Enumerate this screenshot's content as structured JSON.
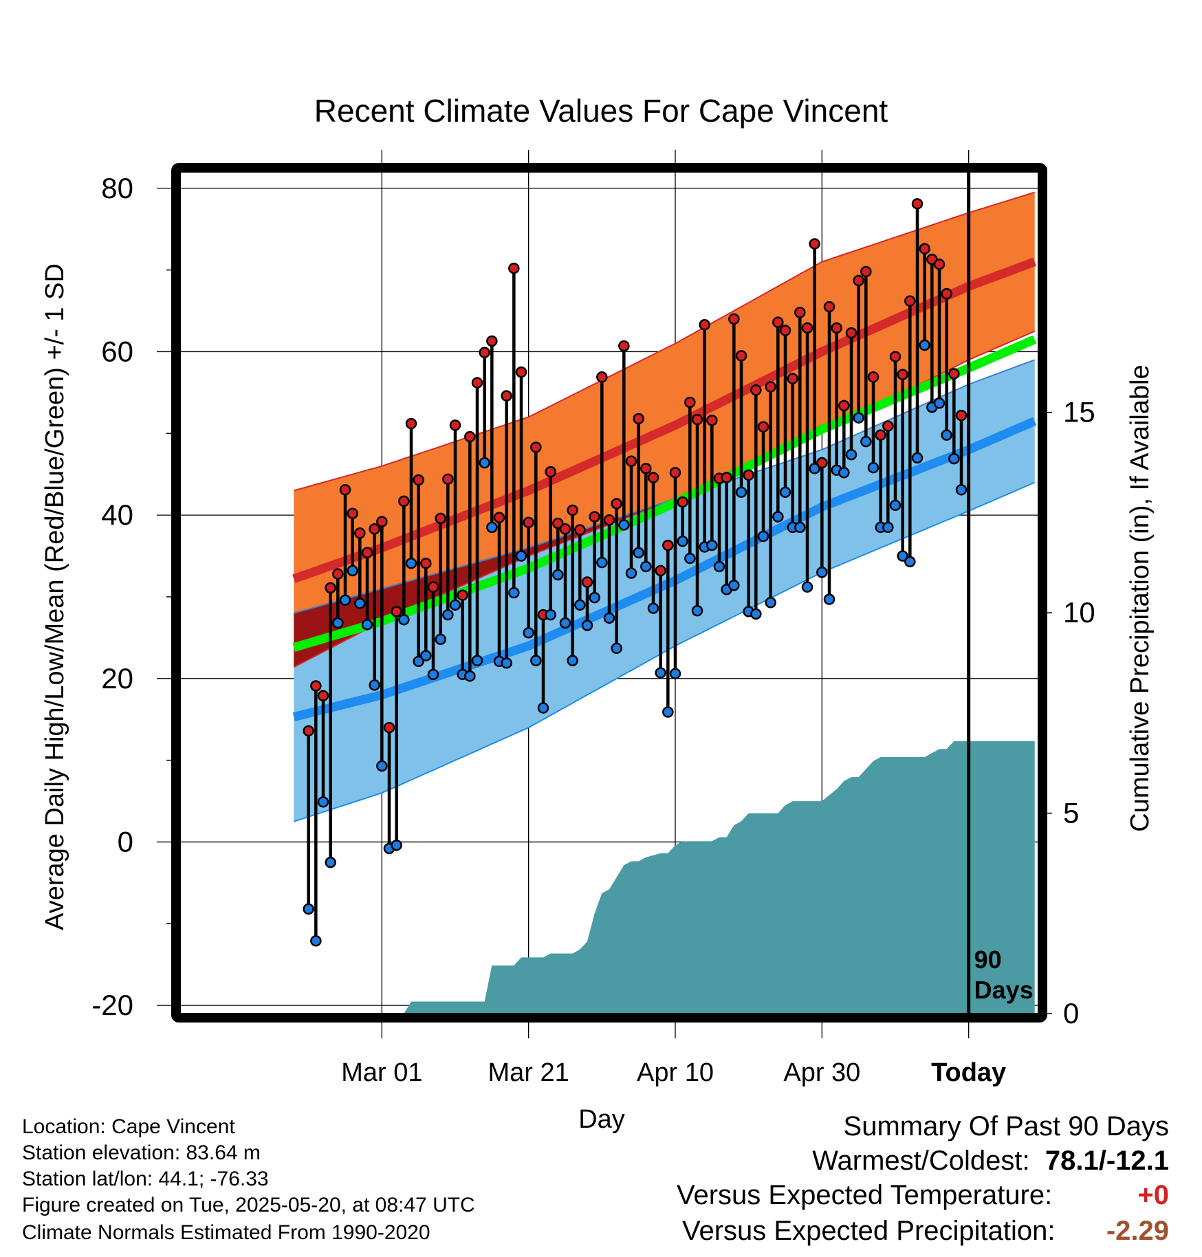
{
  "chart_data": {
    "type": "line",
    "title": "Recent Climate Values For Cape Vincent",
    "xlabel": "Day",
    "ylabel_left": "Average Daily High/Low/Mean (Red/Blue/Green) +/- 1 SD",
    "ylabel_right": "Cumulative Precipitation (in), If Available",
    "ylim": [
      -21,
      82
    ],
    "precip_lim": [
      0,
      21
    ],
    "x_range_days": [
      -107.5,
      9.5
    ],
    "x_ticks": [
      {
        "day": -80,
        "label": "Mar 01"
      },
      {
        "day": -60,
        "label": "Mar 21"
      },
      {
        "day": -40,
        "label": "Apr 10"
      },
      {
        "day": -20,
        "label": "Apr 30"
      },
      {
        "day": 0,
        "label": "Today"
      }
    ],
    "y_ticks": [
      -20,
      0,
      20,
      40,
      60,
      80
    ],
    "y_tick_labels": [
      "-20",
      "0",
      "20",
      "40",
      "60",
      "80"
    ],
    "precip_ticks": [
      0,
      5,
      10,
      15
    ],
    "precip_tick_labels": [
      "0",
      "5",
      "10",
      "15"
    ],
    "today_marker_label": [
      "90",
      "Days"
    ],
    "normals": {
      "days": [
        -92,
        -80,
        -60,
        -40,
        -20,
        0,
        9
      ],
      "high_mean": [
        32.2,
        36,
        43,
        51,
        60,
        68,
        71
      ],
      "high_sd_upper": [
        43,
        46,
        52,
        61,
        71,
        77,
        79.5
      ],
      "high_sd_lower": [
        21.4,
        27,
        35,
        42,
        50,
        59,
        62.5
      ],
      "low_mean": [
        15.3,
        18,
        24,
        32,
        41,
        48,
        51.5
      ],
      "low_sd_upper": [
        28,
        31,
        36,
        42,
        48,
        56,
        59
      ],
      "low_sd_lower": [
        2.5,
        6,
        14,
        24,
        33,
        40.5,
        44
      ],
      "avg_mean": [
        23.8,
        27,
        33.5,
        41.5,
        50.5,
        58,
        61.5
      ]
    },
    "series": [
      {
        "name": "High",
        "days": [
          -90,
          -89,
          -88,
          -87,
          -86,
          -85,
          -84,
          -83,
          -82,
          -81,
          -80,
          -79,
          -78,
          -77,
          -76,
          -75,
          -74,
          -73,
          -72,
          -71,
          -70,
          -69,
          -68,
          -67,
          -66,
          -65,
          -64,
          -63,
          -62,
          -61,
          -60,
          -59,
          -58,
          -57,
          -56,
          -55,
          -54,
          -53,
          -52,
          -51,
          -50,
          -49,
          -48,
          -47,
          -46,
          -45,
          -44,
          -43,
          -42,
          -41,
          -40,
          -39,
          -38,
          -37,
          -36,
          -35,
          -34,
          -33,
          -32,
          -31,
          -30,
          -29,
          -28,
          -27,
          -26,
          -25,
          -24,
          -23,
          -22,
          -21,
          -20,
          -19,
          -18,
          -17,
          -16,
          -15,
          -14,
          -13,
          -12,
          -11,
          -10,
          -9,
          -8,
          -7,
          -6,
          -5,
          -4,
          -3,
          -2,
          -1
        ],
        "values": [
          13.6,
          19.1,
          17.9,
          31.1,
          32.8,
          43.1,
          40.2,
          37.8,
          35.4,
          38.3,
          39.2,
          14.0,
          28.2,
          41.7,
          51.2,
          44.3,
          34.1,
          31.2,
          39.6,
          44.4,
          51.0,
          30.2,
          49.6,
          56.2,
          59.9,
          61.3,
          39.7,
          54.6,
          70.2,
          57.5,
          39.1,
          48.3,
          27.8,
          45.3,
          39.0,
          38.3,
          40.6,
          38.2,
          31.8,
          39.8,
          56.9,
          39.4,
          41.4,
          60.7,
          46.6,
          51.8,
          45.7,
          44.6,
          33.2,
          36.3,
          45.2,
          41.6,
          53.8,
          51.7,
          63.3,
          51.6,
          44.5,
          44.6,
          64.0,
          59.5,
          44.9,
          55.3,
          50.8,
          55.7,
          63.6,
          62.6,
          56.7,
          64.8,
          62.9,
          73.2,
          46.4,
          65.5,
          62.9,
          53.4,
          62.3,
          68.7,
          69.8,
          56.9,
          49.8,
          50.9,
          59.4,
          57.2,
          66.2,
          78.1,
          72.6,
          71.3,
          70.7,
          67.1,
          57.3,
          52.2
        ]
      },
      {
        "name": "Low",
        "days": [
          -90,
          -89,
          -88,
          -87,
          -86,
          -85,
          -84,
          -83,
          -82,
          -81,
          -80,
          -79,
          -78,
          -77,
          -76,
          -75,
          -74,
          -73,
          -72,
          -71,
          -70,
          -69,
          -68,
          -67,
          -66,
          -65,
          -64,
          -63,
          -62,
          -61,
          -60,
          -59,
          -58,
          -57,
          -56,
          -55,
          -54,
          -53,
          -52,
          -51,
          -50,
          -49,
          -48,
          -47,
          -46,
          -45,
          -44,
          -43,
          -42,
          -41,
          -40,
          -39,
          -38,
          -37,
          -36,
          -35,
          -34,
          -33,
          -32,
          -31,
          -30,
          -29,
          -28,
          -27,
          -26,
          -25,
          -24,
          -23,
          -22,
          -21,
          -20,
          -19,
          -18,
          -17,
          -16,
          -15,
          -14,
          -13,
          -12,
          -11,
          -10,
          -9,
          -8,
          -7,
          -6,
          -5,
          -4,
          -3,
          -2,
          -1
        ],
        "values": [
          -8.2,
          -12.1,
          4.9,
          -2.5,
          26.8,
          29.6,
          33.2,
          29.2,
          26.6,
          19.2,
          9.3,
          -0.8,
          -0.4,
          27.2,
          34.1,
          22.1,
          22.8,
          20.5,
          24.8,
          27.8,
          29.0,
          20.5,
          20.3,
          22.2,
          46.4,
          38.5,
          22.1,
          21.9,
          30.5,
          35.0,
          25.6,
          22.2,
          16.4,
          27.8,
          32.7,
          26.8,
          22.2,
          29.0,
          26.5,
          29.9,
          34.2,
          27.4,
          23.7,
          38.8,
          32.9,
          35.4,
          33.7,
          28.6,
          20.7,
          15.9,
          20.6,
          36.8,
          34.7,
          28.3,
          36.1,
          36.3,
          33.7,
          30.9,
          31.4,
          42.8,
          28.2,
          27.9,
          37.4,
          29.3,
          39.8,
          42.8,
          38.5,
          38.5,
          31.2,
          45.7,
          33.0,
          29.7,
          45.5,
          45.2,
          47.4,
          51.9,
          49.0,
          45.8,
          38.5,
          38.5,
          41.2,
          35.0,
          34.3,
          47.0,
          60.8,
          53.2,
          53.7,
          49.8,
          46.9,
          43.1
        ]
      }
    ],
    "precip": {
      "days": [
        -90,
        -77,
        -76,
        -66,
        -65,
        -62,
        -61,
        -58,
        -57,
        -54,
        -53,
        -52,
        -51,
        -50,
        -49,
        -48,
        -47,
        -46,
        -45,
        -44,
        -42,
        -41,
        -40,
        -39,
        -38,
        -35,
        -34,
        -33,
        -32,
        -31,
        -30,
        -29,
        -26,
        -25,
        -24,
        -23,
        -20,
        -18,
        -17,
        -16,
        -15,
        -13,
        -12,
        -11,
        -8,
        -6,
        -4,
        -3,
        -2,
        -1,
        9
      ],
      "values": [
        0,
        0,
        0.3,
        0.3,
        1.2,
        1.2,
        1.4,
        1.4,
        1.5,
        1.5,
        1.6,
        1.8,
        2.5,
        3,
        3.1,
        3.4,
        3.7,
        3.8,
        3.8,
        3.9,
        4,
        4,
        4.2,
        4.3,
        4.3,
        4.3,
        4.4,
        4.4,
        4.7,
        4.8,
        5,
        5,
        5,
        5.2,
        5.3,
        5.3,
        5.3,
        5.6,
        5.8,
        5.9,
        5.9,
        6.3,
        6.4,
        6.4,
        6.4,
        6.4,
        6.6,
        6.6,
        6.8,
        6.8,
        6.8
      ]
    }
  },
  "footer": {
    "location": "Location: Cape Vincent",
    "elevation": "Station elevation: 83.64 m",
    "latlon": "Station lat/lon: 44.1; -76.33",
    "created": "Figure created on Tue, 2025-05-20, at 08:47 UTC",
    "normals": "Climate Normals Estimated From 1990-2020"
  },
  "summary": {
    "title": "Summary Of Past 90 Days",
    "warm_cold_label": "Warmest/Coldest:",
    "warm_cold_value": "78.1/-12.1",
    "temp_label": "Versus Expected Temperature:",
    "temp_value": "+0",
    "precip_label": "Versus Expected Precipitation:",
    "precip_value": "-2.29"
  },
  "colors": {
    "high_band": "#f37a2e",
    "high_mean": "#d42a2a",
    "low_band": "#7fc1e8",
    "low_mean": "#1e8cf0",
    "avg_mean": "#00ee00",
    "overlap": "#9b1414",
    "precip": "#4a9ba3",
    "high_dot": "#d42020",
    "low_dot": "#1e7be0",
    "temp_value": "#d42020",
    "precip_value": "#a0522d"
  }
}
